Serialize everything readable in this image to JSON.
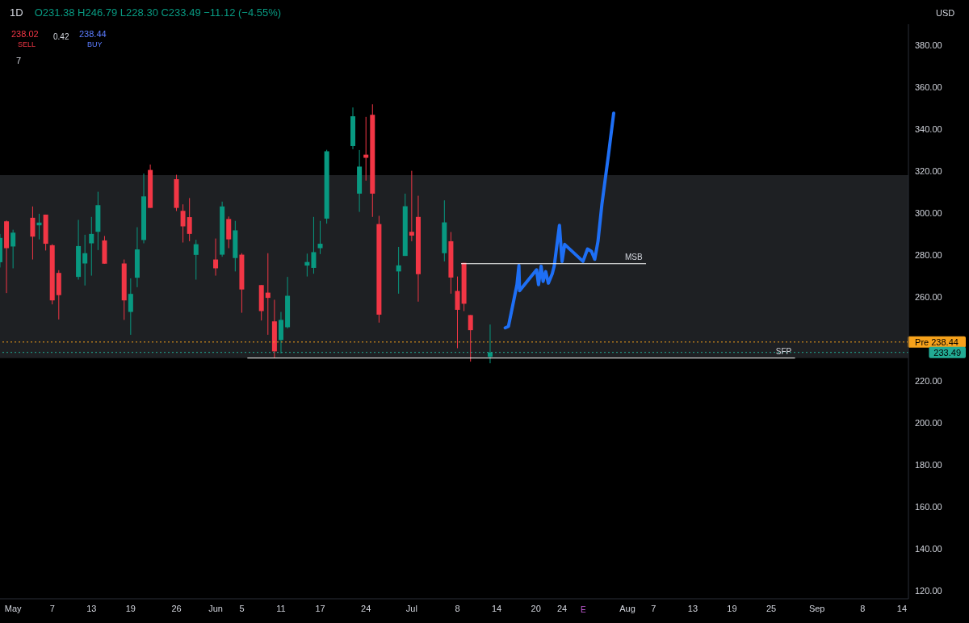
{
  "chart_data": {
    "type": "candlestick",
    "title": "1D",
    "x": [
      "--04-29",
      "--04-30",
      "--05-01",
      "--05-04",
      "--05-05",
      "--05-06",
      "--05-07",
      "--05-08",
      "--05-11",
      "--05-12",
      "--05-13",
      "--05-14",
      "--05-15",
      "--05-18",
      "--05-19",
      "--05-20",
      "--05-21",
      "--05-22",
      "--05-26",
      "--05-27",
      "--05-28",
      "--05-29",
      "--06-01",
      "--06-02",
      "--06-03",
      "--06-04",
      "--06-05",
      "--06-08",
      "--06-09",
      "--06-10",
      "--06-11",
      "--06-12",
      "--06-15",
      "--06-16",
      "--06-17",
      "--06-18",
      "--06-22",
      "--06-23",
      "--06-24",
      "--06-25",
      "--06-26",
      "--06-29",
      "--06-30",
      "--07-01",
      "--07-02",
      "--07-06",
      "--07-07",
      "--07-08",
      "--07-09",
      "--07-10",
      "--07-13"
    ],
    "ohlc": [
      [
        276.5,
        290,
        274,
        288.1
      ],
      [
        296,
        296.4,
        261.8,
        283.2
      ],
      [
        284,
        292,
        273.6,
        290.6
      ],
      [
        297.7,
        303.1,
        277.8,
        288.7
      ],
      [
        294.1,
        299.6,
        287.4,
        295.4
      ],
      [
        299.2,
        299.2,
        282.1,
        285.3
      ],
      [
        284.6,
        285.1,
        256.4,
        258.3
      ],
      [
        271.4,
        272.7,
        249.2,
        260.8
      ],
      [
        269.5,
        296.7,
        268.2,
        284.2
      ],
      [
        275.9,
        289.6,
        265.4,
        280.8
      ],
      [
        285.5,
        298.1,
        270.1,
        290
      ],
      [
        291,
        310.1,
        282.3,
        303.7
      ],
      [
        286.9,
        289,
        275.8,
        275.8
      ],
      [
        275.9,
        277.8,
        249,
        258.3
      ],
      [
        252.8,
        268.8,
        241.9,
        261.4
      ],
      [
        269.1,
        293.2,
        264.6,
        282.6
      ],
      [
        287.1,
        318.8,
        285.5,
        307.9
      ],
      [
        320.5,
        323.1,
        302.4,
        302.4
      ],
      [
        316.1,
        318.2,
        300.9,
        302.4
      ],
      [
        301,
        304.1,
        285.9,
        293.6
      ],
      [
        298,
        307.1,
        286.5,
        290
      ],
      [
        280,
        287.2,
        268.2,
        285.1
      ],
      [
        277.8,
        287.8,
        270.1,
        273.6
      ],
      [
        280.1,
        305.4,
        279.1,
        303.1
      ],
      [
        297.1,
        298.3,
        283.2,
        287.4
      ],
      [
        278.5,
        296.2,
        272.1,
        291.7
      ],
      [
        280.1,
        280.8,
        252.4,
        263.5
      ],
      [
        265.6,
        265.6,
        248.7,
        253.2
      ],
      [
        262,
        280.8,
        241.9,
        259.5
      ],
      [
        248.3,
        258.6,
        231,
        234
      ],
      [
        239.4,
        252.8,
        233,
        249
      ],
      [
        245.5,
        269.5,
        244.9,
        260.5
      ],
      [
        274.9,
        280.6,
        269.7,
        276.6
      ],
      [
        273.8,
        298.1,
        271,
        281.3
      ],
      [
        283.2,
        296.2,
        280.4,
        285.3
      ],
      [
        297.3,
        330.1,
        294.9,
        329.4
      ],
      [
        331.9,
        350.3,
        330.4,
        346.1
      ],
      [
        309.2,
        330,
        300.5,
        322.1
      ],
      [
        327.8,
        345.8,
        315.4,
        326.3
      ],
      [
        346.8,
        351.8,
        298.1,
        309.2
      ],
      [
        294.7,
        298.6,
        247.7,
        251.5
      ],
      [
        272.1,
        283.8,
        261.5,
        275
      ],
      [
        279.5,
        309.2,
        279.5,
        303.2
      ],
      [
        291,
        320.1,
        286.5,
        289.2
      ],
      [
        298.1,
        308.2,
        257.7,
        270.8
      ],
      [
        280.8,
        306,
        276.9,
        295.5
      ],
      [
        286.5,
        290.9,
        261.5,
        269.2
      ],
      [
        262.8,
        269.7,
        235.5,
        253.8
      ],
      [
        276.2,
        276.2,
        253.2,
        256.7
      ],
      [
        251.3,
        251.3,
        229.1,
        244.1
      ],
      [
        231.38,
        246.79,
        228.3,
        233.49
      ]
    ],
    "series": [
      {
        "type": "line",
        "color": "#1e6ff5",
        "x": [
          "--07-15T07:12",
          "--07-15T19:12",
          "--07-17T02:24",
          "--07-17T09:36",
          "--07-17T12:00",
          "--07-20T02:24",
          "--07-20T09:36",
          "--07-20T19:12",
          "--07-21T02:24",
          "--07-21T12:00",
          "--07-21T21:36",
          "--07-22T12:00",
          "--07-22T19:12",
          "--07-23T14:24",
          "--07-24",
          "--07-24T09:36",
          "--07-27T04:48",
          "--07-27T21:36",
          "--07-28T12:00",
          "--07-29",
          "--07-29T12:00",
          "--07-30T02:24",
          "--07-31T02:24",
          "--07-31T21:36"
        ],
        "values": [
          245.2,
          245.9,
          265.8,
          274.9,
          262.9,
          272.9,
          265.8,
          274.6,
          267.3,
          272,
          266.5,
          271,
          274.6,
          294.1,
          276.9,
          285,
          276.9,
          282.8,
          281.7,
          277.9,
          286.5,
          304.2,
          327.7,
          347.6
        ]
      },
      {
        "type": "line",
        "name": "MSB",
        "color": "#ffffff",
        "x": [
          "--07-08T14:24",
          "--08-05T19:12"
        ],
        "values": [
          275.8,
          275.8
        ]
      },
      {
        "type": "line",
        "name": "SFP",
        "color": "#ffffff",
        "x": [
          "--06-05T21:36",
          "--08-28T14:24"
        ],
        "values": [
          230.8,
          230.8
        ]
      }
    ],
    "xlim": [
      "--04-29",
      "--09-15"
    ],
    "xticks": [
      {
        "value": "--05-01",
        "label": "May"
      },
      {
        "value": "--05-07",
        "label": "7"
      },
      {
        "value": "--05-13",
        "label": "13"
      },
      {
        "value": "--05-19",
        "label": "19"
      },
      {
        "value": "--05-26",
        "label": "26"
      },
      {
        "value": "--06-01",
        "label": "Jun"
      },
      {
        "value": "--06-05",
        "label": "5"
      },
      {
        "value": "--06-11",
        "label": "11"
      },
      {
        "value": "--06-17",
        "label": "17"
      },
      {
        "value": "--06-24",
        "label": "24"
      },
      {
        "value": "--07-01",
        "label": "Jul"
      },
      {
        "value": "--07-08",
        "label": "8"
      },
      {
        "value": "--07-14",
        "label": "14"
      },
      {
        "value": "--07-20",
        "label": "20"
      },
      {
        "value": "--07-24",
        "label": "24"
      },
      {
        "value": "--08-03",
        "label": "Aug"
      },
      {
        "value": "--08-07",
        "label": "7"
      },
      {
        "value": "--08-13",
        "label": "13"
      },
      {
        "value": "--08-19",
        "label": "19"
      },
      {
        "value": "--08-25",
        "label": "25"
      },
      {
        "value": "--09-01",
        "label": "Sep"
      },
      {
        "value": "--09-08",
        "label": "8"
      },
      {
        "value": "--09-14",
        "label": "14"
      }
    ],
    "ylim": [
      116,
      390
    ],
    "yticks": [
      {
        "value": 120,
        "label": "120.00"
      },
      {
        "value": 140,
        "label": "140.00"
      },
      {
        "value": 160,
        "label": "160.00"
      },
      {
        "value": 180,
        "label": "180.00"
      },
      {
        "value": 200,
        "label": "200.00"
      },
      {
        "value": 220,
        "label": "220.00"
      },
      {
        "value": 260,
        "label": "260.00"
      },
      {
        "value": 280,
        "label": "280.00"
      },
      {
        "value": 300,
        "label": "300.00"
      },
      {
        "value": 320,
        "label": "320.00"
      },
      {
        "value": 340,
        "label": "340.00"
      },
      {
        "value": 360,
        "label": "360.00"
      },
      {
        "value": 380,
        "label": "380.00"
      }
    ],
    "bands": [
      {
        "axis": "y",
        "from": 230.8,
        "to": 318,
        "color": "#1e2023"
      }
    ],
    "ref_lines": [
      {
        "axis": "y",
        "value": 238.44,
        "label": "Pre 238.44",
        "color": "#f7a21b",
        "line_style": "dotted"
      },
      {
        "axis": "y",
        "value": 233.49,
        "label": "233.49",
        "color": "#22ab94",
        "line_style": "dotted"
      }
    ],
    "annotations": [
      "O231.38 H246.79 L228.30 C233.49 −11.12 (−4.55%)",
      "238.02",
      "SELL",
      "0.42",
      "238.44",
      "BUY",
      "7",
      "USD",
      "E"
    ],
    "grid": false,
    "legend": false,
    "marker": "none",
    "line_style": "solid"
  }
}
